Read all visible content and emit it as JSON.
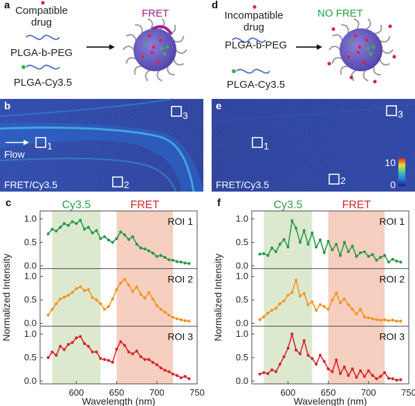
{
  "panels": {
    "a": {
      "letter": "a",
      "drug_label_line1": "Compatible",
      "drug_label_line2": "drug",
      "polymer1": "PLGA-b-PEG",
      "polymer2": "PLGA-Cy3.5",
      "result": "FRET",
      "result_color": "#a0208f"
    },
    "d": {
      "letter": "d",
      "drug_label_line1": "Incompatible",
      "drug_label_line2": "drug",
      "polymer1": "PLGA-b-PEG",
      "polymer2": "PLGA-Cy3.5",
      "result": "NO FRET",
      "result_color": "#22a03a"
    },
    "b": {
      "letter": "b",
      "roi_labels": [
        "1",
        "2",
        "3"
      ],
      "flow_label": "Flow",
      "caption": "FRET/Cy3.5"
    },
    "e": {
      "letter": "e",
      "roi_labels": [
        "1",
        "2",
        "3"
      ],
      "caption": "FRET/Cy3.5",
      "colorbar_max": "10",
      "colorbar_min": "0"
    }
  },
  "colors": {
    "cy35_band": "#dde9cf",
    "fret_band": "#f6cfc0",
    "roi1_line": "#259a45",
    "roi2_line": "#f19420",
    "roi3_line": "#d9232a",
    "cy35_text": "#2ea043",
    "fret_text": "#d9232a"
  },
  "chart_data": [
    {
      "panel": "c",
      "type": "line",
      "xlabel": "Wavelength (nm)",
      "ylabel": "Normalized Intensity",
      "xlim": [
        555,
        750
      ],
      "ylim": [
        0,
        1.05
      ],
      "xticks": [
        "600",
        "650",
        "700",
        "750"
      ],
      "yticks": [
        "0.0",
        "0.5",
        "1.0"
      ],
      "bands": [
        {
          "label": "Cy3.5",
          "range": [
            570,
            630
          ]
        },
        {
          "label": "FRET",
          "range": [
            650,
            720
          ]
        }
      ],
      "x": [
        565,
        570,
        575,
        580,
        585,
        590,
        595,
        600,
        605,
        610,
        615,
        620,
        625,
        630,
        635,
        640,
        645,
        650,
        655,
        660,
        665,
        670,
        675,
        680,
        685,
        690,
        695,
        700,
        705,
        710,
        715,
        720,
        725,
        730,
        735,
        740
      ],
      "series": [
        {
          "name": "ROI 1",
          "values": [
            0.68,
            0.78,
            0.74,
            0.82,
            0.9,
            0.86,
            0.94,
            0.9,
            0.97,
            0.78,
            0.82,
            0.7,
            0.75,
            0.58,
            0.62,
            0.55,
            0.5,
            0.58,
            0.72,
            0.66,
            0.56,
            0.62,
            0.46,
            0.38,
            0.36,
            0.32,
            0.27,
            0.2,
            0.22,
            0.18,
            0.13,
            0.12,
            0.09,
            0.08,
            0.06,
            0.05
          ]
        },
        {
          "name": "ROI 2",
          "values": [
            0.18,
            0.3,
            0.42,
            0.52,
            0.56,
            0.6,
            0.66,
            0.74,
            0.78,
            0.7,
            0.72,
            0.55,
            0.5,
            0.42,
            0.3,
            0.36,
            0.52,
            0.72,
            0.86,
            0.94,
            0.82,
            0.68,
            0.78,
            0.62,
            0.54,
            0.66,
            0.52,
            0.38,
            0.3,
            0.24,
            0.18,
            0.13,
            0.1,
            0.08,
            0.06,
            0.05
          ]
        },
        {
          "name": "ROI 3",
          "values": [
            0.5,
            0.62,
            0.55,
            0.74,
            0.67,
            0.78,
            0.82,
            0.92,
            0.95,
            0.8,
            0.74,
            0.62,
            0.62,
            0.48,
            0.46,
            0.44,
            0.4,
            0.68,
            0.84,
            0.76,
            0.62,
            0.58,
            0.64,
            0.52,
            0.46,
            0.46,
            0.4,
            0.35,
            0.28,
            0.23,
            0.2,
            0.15,
            0.12,
            0.07,
            0.1,
            0.05
          ]
        }
      ]
    },
    {
      "panel": "f",
      "type": "line",
      "xlabel": "Wavelength (nm)",
      "ylabel": "Normalized Intensity",
      "xlim": [
        555,
        750
      ],
      "ylim": [
        0,
        1.05
      ],
      "xticks": [
        "600",
        "650",
        "700",
        "750"
      ],
      "yticks": [
        "0.0",
        "0.5",
        "1.0"
      ],
      "bands": [
        {
          "label": "Cy3.5",
          "range": [
            570,
            630
          ]
        },
        {
          "label": "FRET",
          "range": [
            650,
            720
          ]
        }
      ],
      "x": [
        565,
        570,
        575,
        580,
        585,
        590,
        595,
        600,
        605,
        610,
        615,
        620,
        625,
        630,
        635,
        640,
        645,
        650,
        655,
        660,
        665,
        670,
        675,
        680,
        685,
        690,
        695,
        700,
        705,
        710,
        715,
        720,
        725,
        730,
        735,
        740
      ],
      "series": [
        {
          "name": "ROI 1",
          "values": [
            0.25,
            0.26,
            0.22,
            0.38,
            0.3,
            0.46,
            0.56,
            0.4,
            0.96,
            0.8,
            0.5,
            0.75,
            0.46,
            0.7,
            0.4,
            0.55,
            0.28,
            0.52,
            0.34,
            0.46,
            0.22,
            0.5,
            0.3,
            0.42,
            0.2,
            0.28,
            0.3,
            0.2,
            0.24,
            0.12,
            0.18,
            0.22,
            0.08,
            0.14,
            0.1,
            0.08
          ]
        },
        {
          "name": "ROI 2",
          "values": [
            0.08,
            0.14,
            0.22,
            0.28,
            0.32,
            0.42,
            0.48,
            0.6,
            0.66,
            0.92,
            0.58,
            0.64,
            0.4,
            0.46,
            0.28,
            0.4,
            0.36,
            0.3,
            0.5,
            0.65,
            0.44,
            0.52,
            0.4,
            0.3,
            0.2,
            0.3,
            0.14,
            0.12,
            0.1,
            0.08,
            0.07,
            0.08,
            0.06,
            0.07,
            0.05,
            0.05
          ]
        },
        {
          "name": "ROI 3",
          "values": [
            0.15,
            0.18,
            0.16,
            0.24,
            0.2,
            0.36,
            0.52,
            0.7,
            1.0,
            0.66,
            0.58,
            0.86,
            0.55,
            0.48,
            0.36,
            0.55,
            0.42,
            0.26,
            0.2,
            0.45,
            0.16,
            0.3,
            0.12,
            0.26,
            0.08,
            0.22,
            0.1,
            0.22,
            0.12,
            0.05,
            0.1,
            0.18,
            0.06,
            0.05,
            0.02,
            0.03
          ]
        }
      ]
    }
  ]
}
